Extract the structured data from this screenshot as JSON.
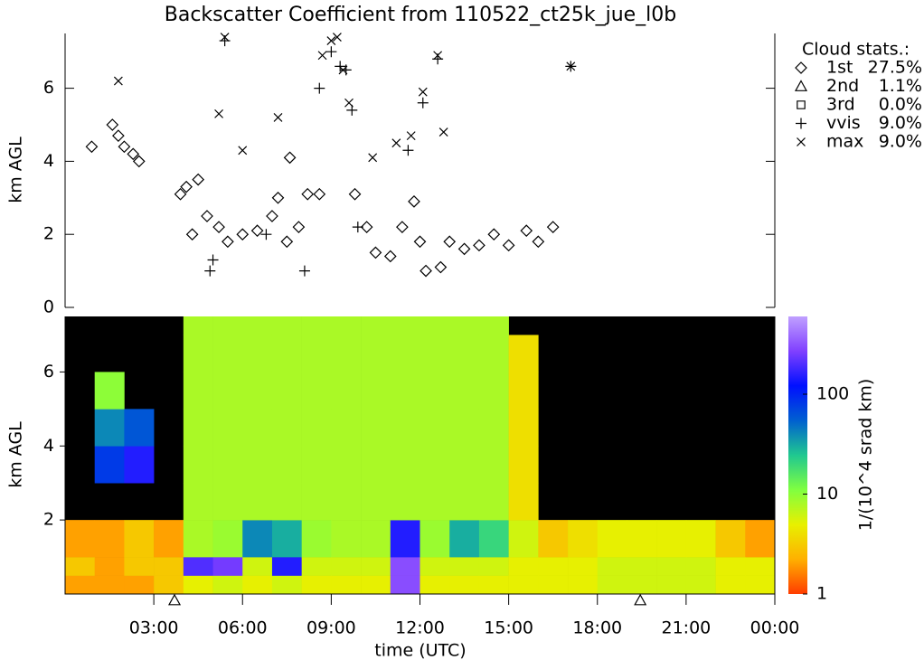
{
  "chart_data": [
    {
      "type": "scatter",
      "title": "Backscatter Coefficient from 110522_ct25k_jue_l0b",
      "ylabel": "km AGL",
      "xlim": [
        0,
        24
      ],
      "ylim": [
        0,
        7.5
      ],
      "yticks": [
        0,
        2,
        4,
        6
      ],
      "color": "#000000",
      "legend_title": "Cloud stats.:",
      "series": [
        {
          "name": "1st",
          "marker": "diamond",
          "stat": "27.5%",
          "x": [
            0.9,
            1.6,
            1.8,
            2.0,
            2.3,
            2.5,
            3.9,
            4.1,
            4.3,
            4.5,
            4.8,
            5.2,
            5.5,
            6.0,
            6.5,
            7.0,
            7.2,
            7.5,
            7.6,
            7.9,
            8.2,
            8.6,
            9.8,
            10.2,
            10.5,
            11.0,
            11.4,
            11.8,
            12.0,
            12.2,
            12.7,
            13.0,
            13.5,
            14.0,
            14.5,
            15.0,
            15.6,
            16.0,
            16.5
          ],
          "y": [
            4.4,
            5.0,
            4.7,
            4.4,
            4.2,
            4.0,
            3.1,
            3.3,
            2.0,
            3.5,
            2.5,
            2.2,
            1.8,
            2.0,
            2.1,
            2.5,
            3.0,
            1.8,
            4.1,
            2.2,
            3.1,
            3.1,
            3.1,
            2.2,
            1.5,
            1.4,
            2.2,
            2.9,
            1.8,
            1.0,
            1.1,
            1.8,
            1.6,
            1.7,
            2.0,
            1.7,
            2.1,
            1.8,
            2.2
          ]
        },
        {
          "name": "2nd",
          "marker": "triangle",
          "stat": "1.1%",
          "x": [],
          "y": []
        },
        {
          "name": "3rd",
          "marker": "square",
          "stat": "0.0%",
          "x": [],
          "y": []
        },
        {
          "name": "vvis",
          "marker": "plus",
          "stat": "9.0%",
          "x": [
            5.4,
            4.9,
            5.0,
            8.1,
            8.6,
            9.0,
            9.3,
            9.5,
            9.7,
            12.1,
            12.6,
            11.6,
            17.1,
            6.8,
            9.9
          ],
          "y": [
            7.3,
            1.0,
            1.3,
            1.0,
            6.0,
            7.0,
            6.6,
            6.5,
            5.4,
            5.6,
            6.8,
            4.3,
            6.6,
            2.0,
            2.2
          ]
        },
        {
          "name": "max",
          "marker": "cross",
          "stat": "9.0%",
          "x": [
            1.8,
            5.2,
            5.4,
            6.0,
            7.2,
            8.7,
            9.0,
            9.2,
            9.4,
            9.6,
            10.4,
            11.2,
            11.7,
            12.1,
            12.6,
            12.8,
            17.1
          ],
          "y": [
            6.2,
            5.3,
            7.4,
            4.3,
            5.2,
            6.9,
            7.3,
            7.4,
            6.5,
            5.6,
            4.1,
            4.5,
            4.7,
            5.9,
            6.9,
            4.8,
            6.6
          ]
        }
      ]
    },
    {
      "type": "heatmap",
      "ylabel": "km AGL",
      "xlabel": "time (UTC)",
      "xlim": [
        0,
        24
      ],
      "ylim": [
        0,
        7.5
      ],
      "yticks": [
        2,
        4,
        6
      ],
      "xticks": [
        {
          "value": 3,
          "label": "03:00"
        },
        {
          "value": 6,
          "label": "06:00"
        },
        {
          "value": 9,
          "label": "09:00"
        },
        {
          "value": 12,
          "label": "12:00"
        },
        {
          "value": 15,
          "label": "15:00"
        },
        {
          "value": 18,
          "label": "18:00"
        },
        {
          "value": 21,
          "label": "21:00"
        },
        {
          "value": 24,
          "label": "00:00"
        }
      ],
      "x_edges": [
        0,
        1,
        2,
        3,
        4,
        5,
        6,
        7,
        8,
        9,
        10,
        11,
        12,
        13,
        14,
        15,
        16,
        17,
        18,
        19,
        20,
        21,
        22,
        23,
        24
      ],
      "y_edges": [
        0,
        0.5,
        1,
        2,
        3,
        4,
        5,
        6,
        7,
        7.5
      ],
      "z": [
        [
          2,
          3,
          2,
          null,
          null,
          null,
          null,
          null,
          null
        ],
        [
          2,
          2,
          2,
          null,
          80,
          40,
          10,
          null,
          null
        ],
        [
          2,
          3,
          3,
          null,
          150,
          60,
          null,
          null,
          null
        ],
        [
          3,
          3,
          2,
          null,
          null,
          null,
          null,
          null,
          null
        ],
        [
          5,
          200,
          8,
          8,
          8,
          8,
          8,
          8,
          8
        ],
        [
          6,
          250,
          9,
          8,
          8,
          8,
          8,
          8,
          8
        ],
        [
          5,
          6,
          40,
          8,
          8,
          8,
          8,
          8,
          8
        ],
        [
          6,
          150,
          30,
          8,
          8,
          8,
          8,
          8,
          8
        ],
        [
          5,
          6,
          9,
          8,
          8,
          8,
          8,
          8,
          8
        ],
        [
          5,
          6,
          8,
          8,
          8,
          8,
          8,
          8,
          8
        ],
        [
          5,
          6,
          8,
          8,
          8,
          8,
          8,
          8,
          8
        ],
        [
          300,
          300,
          150,
          8,
          8,
          8,
          8,
          8,
          8
        ],
        [
          5,
          6,
          9,
          8,
          8,
          8,
          8,
          8,
          8
        ],
        [
          5,
          6,
          30,
          8,
          8,
          8,
          8,
          8,
          8
        ],
        [
          5,
          6,
          20,
          8,
          8,
          8,
          8,
          8,
          8
        ],
        [
          5,
          5,
          6,
          4,
          4,
          4,
          4,
          4,
          null
        ],
        [
          5,
          5,
          3,
          null,
          null,
          null,
          null,
          null,
          null
        ],
        [
          5,
          5,
          4,
          null,
          null,
          null,
          null,
          null,
          null
        ],
        [
          6,
          6,
          5,
          null,
          null,
          null,
          null,
          null,
          null
        ],
        [
          6,
          6,
          5,
          null,
          null,
          null,
          null,
          null,
          null
        ],
        [
          6,
          6,
          5,
          null,
          null,
          null,
          null,
          null,
          null
        ],
        [
          6,
          6,
          5,
          null,
          null,
          null,
          null,
          null,
          null
        ],
        [
          5,
          5,
          3,
          null,
          null,
          null,
          null,
          null,
          null
        ],
        [
          5,
          5,
          2,
          null,
          null,
          null,
          null,
          null,
          null
        ]
      ],
      "markers_x": [
        3.7,
        19.45
      ],
      "colorbar": {
        "label": "1/(10^4 srad km)",
        "lim": [
          1,
          600
        ],
        "ticks": [
          1,
          10,
          100
        ],
        "log": true,
        "colors": [
          "#ff3c00",
          "#ffb000",
          "#e8f000",
          "#80ff40",
          "#20c890",
          "#0060d0",
          "#0010ff",
          "#8040ff",
          "#c0a0ff"
        ]
      }
    }
  ]
}
